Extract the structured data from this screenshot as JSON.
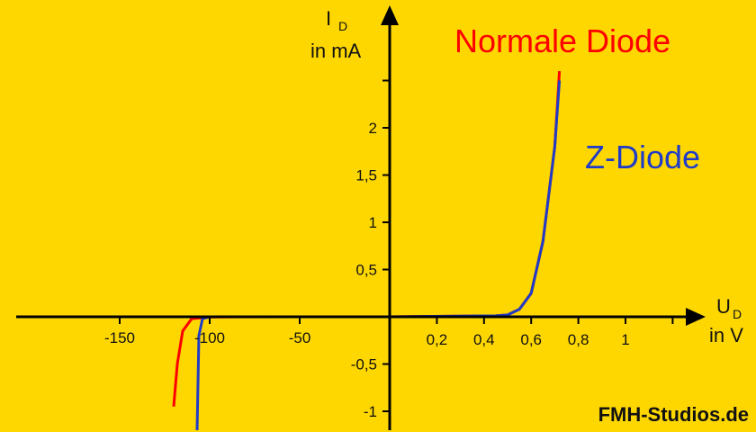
{
  "chart_data": {
    "type": "line",
    "title": "",
    "background": "#ffd700",
    "axis_color": "#000000",
    "y_axis": {
      "label_symbol": "I",
      "label_subscript": "D",
      "label_unit": "in mA",
      "ticks": [
        {
          "value": -1,
          "label": "-1"
        },
        {
          "value": -0.5,
          "label": "-0,5"
        },
        {
          "value": 0.5,
          "label": "0,5"
        },
        {
          "value": 1,
          "label": "1"
        },
        {
          "value": 1.5,
          "label": "1,5"
        },
        {
          "value": 2,
          "label": "2"
        },
        {
          "value": 2.5,
          "label": ""
        }
      ]
    },
    "x_axis": {
      "label_symbol": "U",
      "label_subscript": "D",
      "label_unit": "in V",
      "note": "split scale: negative side in V (-150 to 0), positive side in V (0 to 1.2)",
      "negative_ticks": [
        {
          "value": -150,
          "label": "-150"
        },
        {
          "value": -100,
          "label": "-100"
        },
        {
          "value": -50,
          "label": "-50"
        }
      ],
      "positive_ticks": [
        {
          "value": 0.2,
          "label": "0,2"
        },
        {
          "value": 0.4,
          "label": "0,4"
        },
        {
          "value": 0.6,
          "label": "0,6"
        },
        {
          "value": 0.8,
          "label": "0,8"
        },
        {
          "value": 1.0,
          "label": "1"
        },
        {
          "value": 1.2,
          "label": ""
        }
      ]
    },
    "series": [
      {
        "name": "Normale Diode",
        "color": "#ff0000",
        "forward": [
          [
            0,
            0
          ],
          [
            0.45,
            0.01
          ],
          [
            0.5,
            0.02
          ],
          [
            0.55,
            0.08
          ],
          [
            0.6,
            0.25
          ],
          [
            0.65,
            0.8
          ],
          [
            0.7,
            1.8
          ],
          [
            0.72,
            2.6
          ]
        ],
        "reverse": [
          [
            0,
            0
          ],
          [
            -50,
            0
          ],
          [
            -100,
            -0.002
          ],
          [
            -110,
            -0.02
          ],
          [
            -115,
            -0.15
          ],
          [
            -118,
            -0.5
          ],
          [
            -120,
            -0.95
          ]
        ]
      },
      {
        "name": "Z-Diode",
        "color": "#1f3cc8",
        "forward": [
          [
            0,
            0
          ],
          [
            0.45,
            0.01
          ],
          [
            0.5,
            0.02
          ],
          [
            0.55,
            0.08
          ],
          [
            0.6,
            0.25
          ],
          [
            0.65,
            0.8
          ],
          [
            0.7,
            1.8
          ],
          [
            0.72,
            2.5
          ]
        ],
        "reverse": [
          [
            0,
            0
          ],
          [
            -50,
            0
          ],
          [
            -100,
            0
          ],
          [
            -104,
            -0.02
          ],
          [
            -106,
            -0.2
          ],
          [
            -107,
            -1.2
          ]
        ]
      }
    ],
    "legend": [
      {
        "label": "Normale Diode",
        "color": "#ff0000"
      },
      {
        "label": "Z-Diode",
        "color": "#1f3cc8"
      }
    ],
    "credit": "FMH-Studios.de"
  }
}
